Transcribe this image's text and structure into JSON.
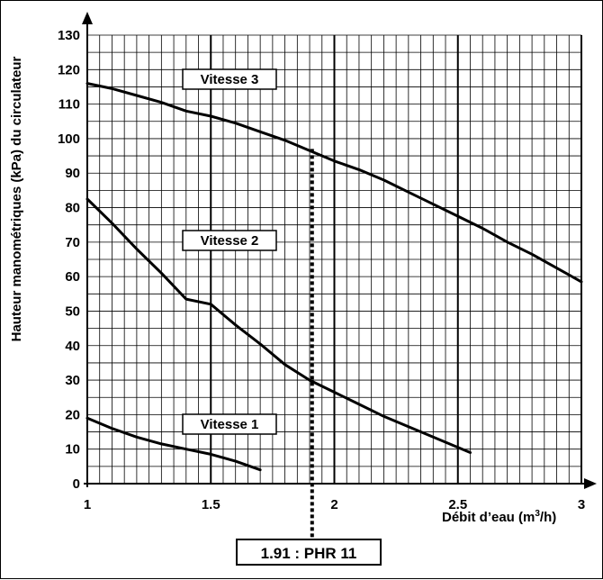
{
  "chart_data": {
    "type": "line",
    "xlabel_text": "Débit d’eau (m",
    "xlabel_sup": "3",
    "xlabel_end": "/h)",
    "ylabel": "Hauteur manométriques (kPa)  du circulateur",
    "xlim": [
      1,
      3
    ],
    "ylim": [
      0,
      130
    ],
    "x_ticks": [
      "1",
      "1.5",
      "2",
      "2.5",
      "3"
    ],
    "y_ticks": [
      "0",
      "10",
      "20",
      "30",
      "40",
      "50",
      "60",
      "70",
      "80",
      "90",
      "100",
      "110",
      "120",
      "130"
    ],
    "grid": true,
    "series": [
      {
        "name": "Vitesse 3",
        "points": [
          [
            1.0,
            116
          ],
          [
            1.1,
            114.5
          ],
          [
            1.2,
            112.5
          ],
          [
            1.3,
            110.5
          ],
          [
            1.4,
            108
          ],
          [
            1.5,
            106.5
          ],
          [
            1.6,
            104.5
          ],
          [
            1.7,
            102
          ],
          [
            1.8,
            99.5
          ],
          [
            1.9,
            96.5
          ],
          [
            2.0,
            93.5
          ],
          [
            2.1,
            91
          ],
          [
            2.2,
            88
          ],
          [
            2.3,
            84.5
          ],
          [
            2.4,
            81
          ],
          [
            2.5,
            77.5
          ],
          [
            2.6,
            74
          ],
          [
            2.7,
            70
          ],
          [
            2.8,
            66.5
          ],
          [
            2.9,
            62.5
          ],
          [
            3.0,
            58.5
          ]
        ]
      },
      {
        "name": "Vitesse 2",
        "points": [
          [
            1.0,
            82.5
          ],
          [
            1.1,
            75.5
          ],
          [
            1.2,
            68
          ],
          [
            1.3,
            61
          ],
          [
            1.4,
            53.5
          ],
          [
            1.5,
            52
          ],
          [
            1.6,
            46
          ],
          [
            1.7,
            40.5
          ],
          [
            1.8,
            34.5
          ],
          [
            1.9,
            30
          ],
          [
            2.0,
            26.5
          ],
          [
            2.1,
            23
          ],
          [
            2.2,
            19.5
          ],
          [
            2.3,
            16.5
          ],
          [
            2.4,
            13.5
          ],
          [
            2.5,
            10.5
          ],
          [
            2.55,
            9
          ]
        ]
      },
      {
        "name": "Vitesse 1",
        "points": [
          [
            1.0,
            19
          ],
          [
            1.1,
            16
          ],
          [
            1.2,
            13.5
          ],
          [
            1.3,
            11.5
          ],
          [
            1.4,
            10
          ],
          [
            1.5,
            8.5
          ],
          [
            1.6,
            6.5
          ],
          [
            1.7,
            4
          ]
        ]
      }
    ],
    "marker": {
      "x": 1.91,
      "y": 97,
      "label": "1.91 : PHR 11"
    }
  }
}
